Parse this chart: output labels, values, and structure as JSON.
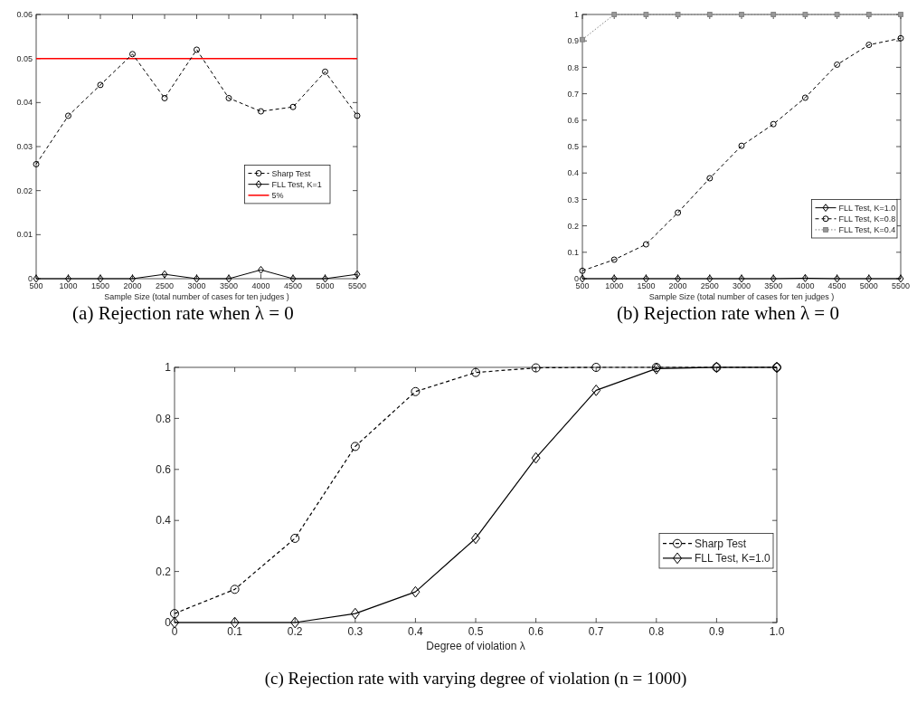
{
  "chart_data": [
    {
      "type": "line",
      "title": "(a) Rejection rate when λ = 0",
      "xlabel": "Sample Size (total number of cases for ten judges )",
      "x": [
        500,
        1000,
        1500,
        2000,
        2500,
        3000,
        3500,
        4000,
        4500,
        5000,
        5500
      ],
      "xlim": [
        500,
        5500
      ],
      "xticks": [
        500,
        1000,
        1500,
        2000,
        2500,
        3000,
        3500,
        4000,
        4500,
        5000,
        5500
      ],
      "ylim": [
        0,
        0.06
      ],
      "yticks": [
        {
          "value": 0,
          "label": "0"
        },
        0.01,
        0.02,
        0.03,
        0.04,
        0.05,
        0.06
      ],
      "legend": "right",
      "series": [
        {
          "name": "Sharp Test",
          "color": "#000000",
          "marker": "circle",
          "line_style": "dashed",
          "values": [
            0.026,
            0.037,
            0.044,
            0.051,
            0.041,
            0.052,
            0.041,
            0.038,
            0.039,
            0.047,
            0.037
          ]
        },
        {
          "name": "FLL Test, K=1",
          "color": "#000000",
          "marker": "diamond",
          "line_style": "solid",
          "values": [
            0,
            0,
            0,
            0,
            0.001,
            0,
            0,
            0.002,
            0,
            0,
            0.001
          ]
        }
      ],
      "ref_lines": [
        {
          "axis": "y",
          "value": 0.05,
          "label": "5%",
          "color": "#ff0000"
        }
      ]
    },
    {
      "type": "line",
      "title": "(b) Rejection rate when λ = 0",
      "xlabel": "Sample Size (total number of cases for ten judges )",
      "x": [
        500,
        1000,
        1500,
        2000,
        2500,
        3000,
        3500,
        4000,
        4500,
        5000,
        5500
      ],
      "xlim": [
        500,
        5500
      ],
      "xticks": [
        500,
        1000,
        1500,
        2000,
        2500,
        3000,
        3500,
        4000,
        4500,
        5000,
        5500
      ],
      "ylim": [
        0,
        1
      ],
      "yticks": [
        0,
        0.1,
        0.2,
        0.3,
        0.4,
        0.5,
        0.6,
        0.7,
        0.8,
        0.9,
        1
      ],
      "legend": "bottom right",
      "series": [
        {
          "name": "FLL Test, K=1.0",
          "color": "#000000",
          "marker": "diamond",
          "line_style": "solid",
          "values": [
            0,
            0,
            0,
            0,
            0,
            0,
            0,
            0.002,
            0,
            0,
            0
          ]
        },
        {
          "name": "FLL Test, K=0.8",
          "color": "#000000",
          "marker": "circle",
          "line_style": "dashed",
          "values": [
            0.03,
            0.072,
            0.13,
            0.25,
            0.38,
            0.503,
            0.585,
            0.685,
            0.81,
            0.885,
            0.91
          ]
        },
        {
          "name": "FLL Test, K=0.4",
          "color": "#808080",
          "marker": "square",
          "line_style": "dotted",
          "values": [
            0.905,
            1,
            1,
            1,
            1,
            1,
            1,
            1,
            1,
            1,
            1
          ]
        }
      ]
    },
    {
      "type": "line",
      "title": "(c) Rejection rate with varying degree of violation (n = 1000)",
      "xlabel": "Degree of violation λ",
      "x": [
        0,
        0.1,
        0.2,
        0.3,
        0.4,
        0.5,
        0.6,
        0.7,
        0.8,
        0.9,
        1
      ],
      "xlim": [
        0,
        1
      ],
      "xticks": [
        0,
        0.1,
        0.2,
        0.3,
        0.4,
        0.5,
        0.6,
        0.7,
        0.8,
        0.9,
        {
          "value": 1,
          "label": "1.0"
        }
      ],
      "ylim": [
        0,
        1
      ],
      "yticks": [
        0,
        0.2,
        0.4,
        0.6,
        0.8,
        1
      ],
      "legend": "bottom right",
      "series": [
        {
          "name": "Sharp Test",
          "color": "#000000",
          "marker": "circle",
          "line_style": "dashed",
          "values": [
            0.035,
            0.13,
            0.33,
            0.69,
            0.905,
            0.98,
            0.998,
            1,
            1,
            1,
            1
          ]
        },
        {
          "name": "FLL Test, K=1.0",
          "color": "#000000",
          "marker": "diamond",
          "line_style": "solid",
          "values": [
            0,
            0,
            0,
            0.035,
            0.12,
            0.33,
            0.645,
            0.91,
            0.995,
            1,
            1
          ]
        }
      ]
    }
  ]
}
